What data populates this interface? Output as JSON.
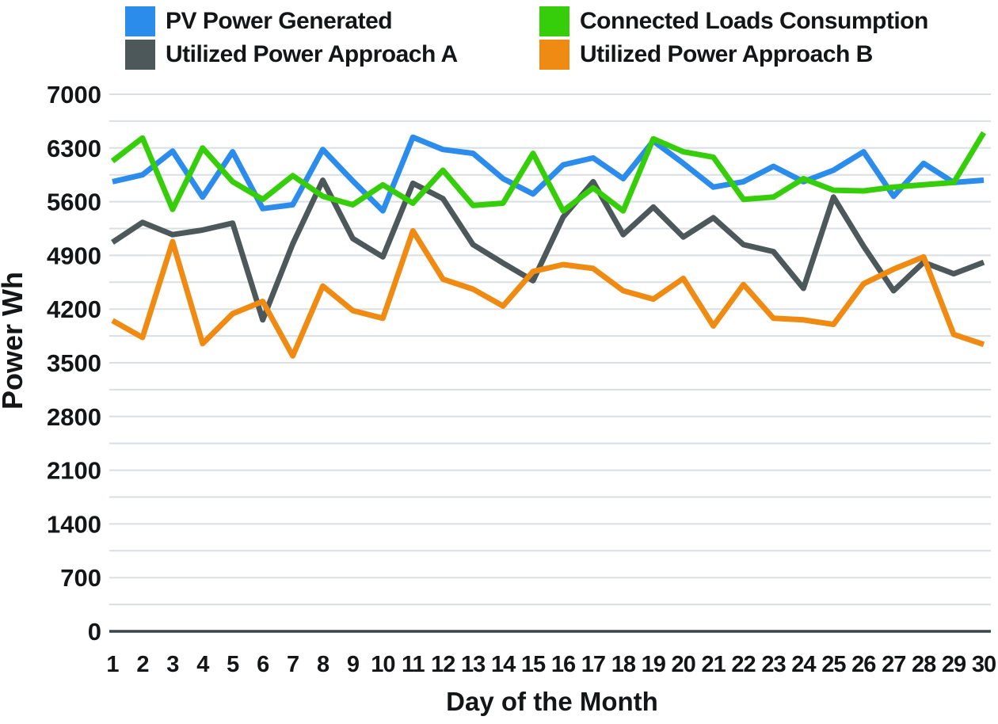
{
  "legend": {
    "items": [
      {
        "label": "PV Power Generated",
        "color": "#2b8cec"
      },
      {
        "label": "Connected Loads Consumption",
        "color": "#36ce0a"
      },
      {
        "label": "Utilized Power Approach A",
        "color": "#4d585b"
      },
      {
        "label": "Utilized Power Approach B",
        "color": "#ef8b12"
      }
    ]
  },
  "chart_data": {
    "type": "line",
    "title": "",
    "xlabel": "Day of the Month",
    "ylabel": "Power Wh",
    "x": [
      1,
      2,
      3,
      4,
      5,
      6,
      7,
      8,
      9,
      10,
      11,
      12,
      13,
      14,
      15,
      16,
      17,
      18,
      19,
      20,
      21,
      22,
      23,
      24,
      25,
      26,
      27,
      28,
      29,
      30
    ],
    "xtick_labels": [
      "1",
      "2",
      "3",
      "4",
      "5",
      "6",
      "7",
      "8",
      "9",
      "10",
      "11",
      "12",
      "13",
      "14",
      "15",
      "16",
      "17",
      "18",
      "19",
      "20",
      "21",
      "22",
      "23",
      "24",
      "25",
      "26",
      "27",
      "28",
      "29",
      "30"
    ],
    "series": [
      {
        "name": "PV Power Generated",
        "color": "#2b8cec",
        "values": [
          5860,
          5950,
          6260,
          5660,
          6250,
          5510,
          5560,
          6280,
          5870,
          5480,
          6440,
          6280,
          6230,
          5900,
          5700,
          6080,
          6170,
          5900,
          6390,
          6100,
          5790,
          5860,
          6060,
          5860,
          6010,
          6250,
          5670,
          6100,
          5850,
          5880
        ]
      },
      {
        "name": "Connected Loads Consumption",
        "color": "#36ce0a",
        "values": [
          6130,
          6430,
          5500,
          6300,
          5860,
          5630,
          5940,
          5670,
          5560,
          5820,
          5580,
          6010,
          5550,
          5580,
          6230,
          5480,
          5780,
          5480,
          6420,
          6250,
          6180,
          5630,
          5660,
          5900,
          5750,
          5740,
          5790,
          5820,
          5850,
          6500
        ]
      },
      {
        "name": "Utilized Power Approach A",
        "color": "#4d585b",
        "values": [
          5070,
          5330,
          5170,
          5230,
          5320,
          4060,
          5050,
          5880,
          5120,
          4880,
          5840,
          5640,
          5040,
          4800,
          4570,
          5400,
          5860,
          5170,
          5530,
          5140,
          5390,
          5040,
          4950,
          4470,
          5660,
          5020,
          4440,
          4810,
          4660,
          4810
        ]
      },
      {
        "name": "Utilized Power Approach B",
        "color": "#ef8b12",
        "values": [
          4050,
          3830,
          5080,
          3750,
          4140,
          4300,
          3590,
          4500,
          4180,
          4080,
          5220,
          4590,
          4460,
          4240,
          4690,
          4780,
          4730,
          4440,
          4330,
          4600,
          3980,
          4520,
          4080,
          4060,
          4000,
          4530,
          4720,
          4880,
          3870,
          3740
        ]
      }
    ],
    "ylim": [
      0,
      7000
    ],
    "yticks": [
      0,
      700,
      1400,
      2100,
      2800,
      3500,
      4200,
      4900,
      5600,
      6300,
      7000
    ],
    "minor_gridline_step": 350,
    "grid": true,
    "legend_position": "top",
    "colors": {
      "gridline": "#d9dfe2",
      "axis_line": "#37474d",
      "tick_text": "#131516"
    }
  }
}
